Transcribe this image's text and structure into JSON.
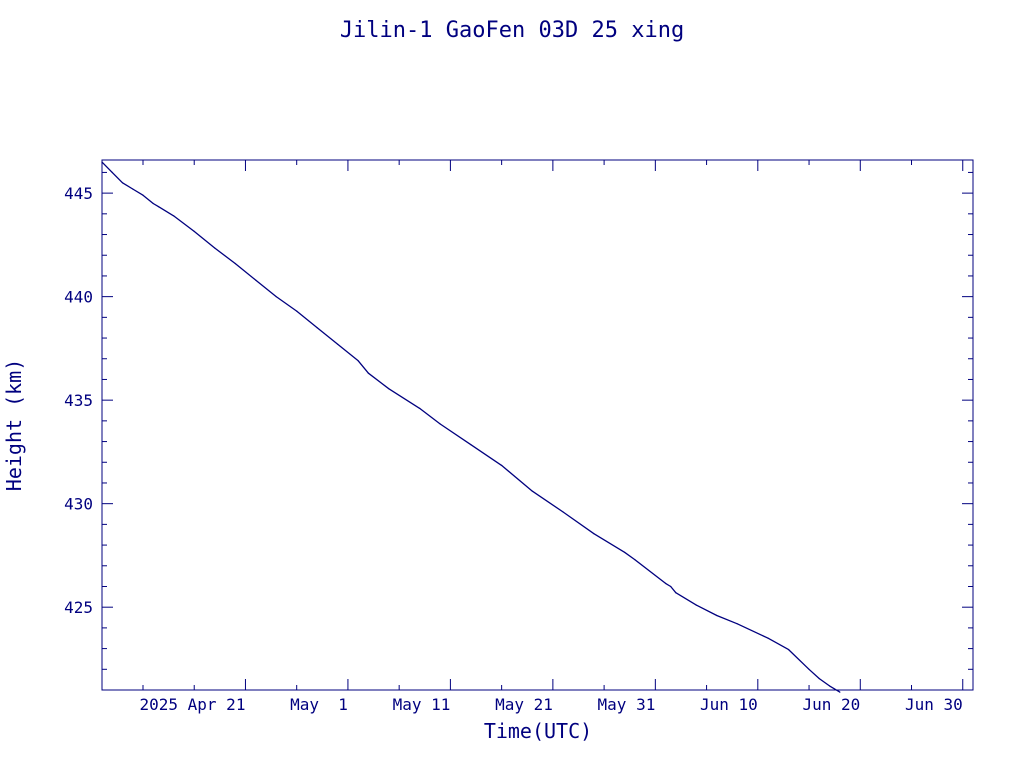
{
  "chart_data": {
    "type": "line",
    "title": "Jilin-1 GaoFen 03D 25 xing",
    "xlabel": "Time(UTC)",
    "ylabel": "Height (km)",
    "xlim": [
      "2025-04-07",
      "2025-07-01"
    ],
    "ylim": [
      421,
      446.6
    ],
    "y_ticks": [
      425,
      430,
      435,
      440,
      445
    ],
    "y_minor_step": 1,
    "x_ticks": [
      {
        "date": "2025-04-21",
        "label": "2025 Apr 21"
      },
      {
        "date": "2025-05-01",
        "label": "May  1"
      },
      {
        "date": "2025-05-11",
        "label": "May 11"
      },
      {
        "date": "2025-05-21",
        "label": "May 21"
      },
      {
        "date": "2025-05-31",
        "label": "May 31"
      },
      {
        "date": "2025-06-10",
        "label": "Jun 10"
      },
      {
        "date": "2025-06-20",
        "label": "Jun 20"
      },
      {
        "date": "2025-06-30",
        "label": "Jun 30"
      }
    ],
    "x_minor_step_days": 5,
    "grid": false,
    "color": "#00007f",
    "series": [
      {
        "points": [
          [
            "2025-04-07",
            446.5
          ],
          [
            "2025-04-08",
            446.0
          ],
          [
            "2025-04-09",
            445.5
          ],
          [
            "2025-04-10",
            445.2
          ],
          [
            "2025-04-11",
            444.9
          ],
          [
            "2025-04-12",
            444.5
          ],
          [
            "2025-04-12T12",
            444.35
          ],
          [
            "2025-04-14",
            443.9
          ],
          [
            "2025-04-16",
            443.15
          ],
          [
            "2025-04-18",
            442.35
          ],
          [
            "2025-04-20",
            441.6
          ],
          [
            "2025-04-22",
            440.8
          ],
          [
            "2025-04-24",
            440.0
          ],
          [
            "2025-04-26",
            439.3
          ],
          [
            "2025-04-28",
            438.5
          ],
          [
            "2025-04-30",
            437.7
          ],
          [
            "2025-05-02",
            436.9
          ],
          [
            "2025-05-03",
            436.3
          ],
          [
            "2025-05-05",
            435.55
          ],
          [
            "2025-05-08",
            434.6
          ],
          [
            "2025-05-10",
            433.85
          ],
          [
            "2025-05-13",
            432.85
          ],
          [
            "2025-05-16",
            431.85
          ],
          [
            "2025-05-19",
            430.6
          ],
          [
            "2025-05-22",
            429.6
          ],
          [
            "2025-05-25",
            428.55
          ],
          [
            "2025-05-28",
            427.65
          ],
          [
            "2025-05-29",
            427.3
          ],
          [
            "2025-06-01",
            426.15
          ],
          [
            "2025-06-01T12",
            426.0
          ],
          [
            "2025-06-02",
            425.7
          ],
          [
            "2025-06-04",
            425.1
          ],
          [
            "2025-06-06",
            424.6
          ],
          [
            "2025-06-08",
            424.2
          ],
          [
            "2025-06-11",
            423.5
          ],
          [
            "2025-06-13",
            422.95
          ],
          [
            "2025-06-15",
            422.0
          ],
          [
            "2025-06-16",
            421.55
          ],
          [
            "2025-06-17",
            421.2
          ],
          [
            "2025-06-18",
            420.9
          ]
        ]
      }
    ]
  }
}
